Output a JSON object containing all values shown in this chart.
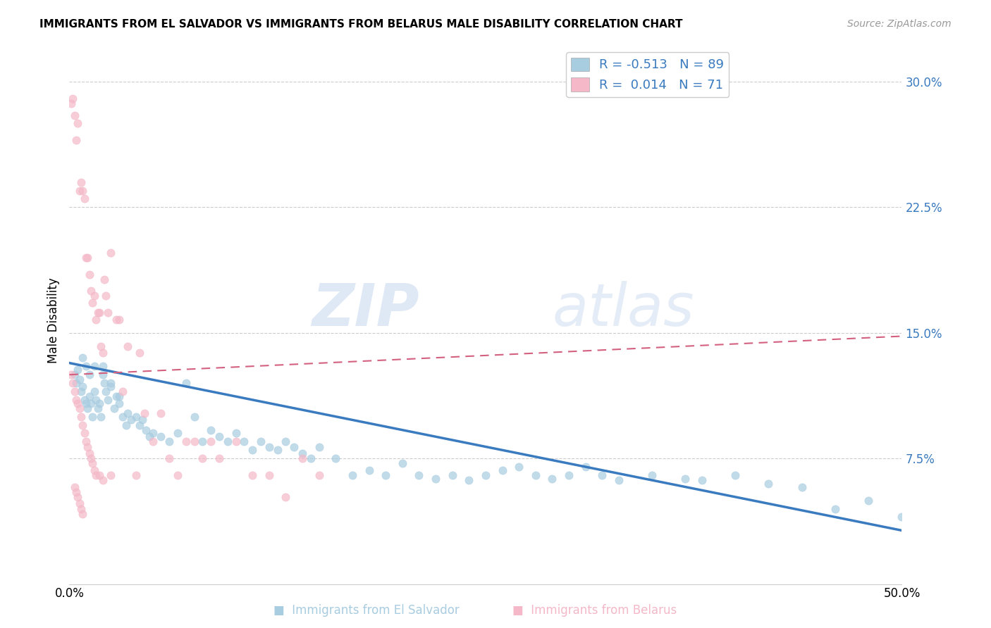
{
  "title": "IMMIGRANTS FROM EL SALVADOR VS IMMIGRANTS FROM BELARUS MALE DISABILITY CORRELATION CHART",
  "source": "Source: ZipAtlas.com",
  "xlabel_label": "Immigrants from El Salvador",
  "xlabel_label2": "Immigrants from Belarus",
  "ylabel": "Male Disability",
  "y_ticks": [
    0.075,
    0.15,
    0.225,
    0.3
  ],
  "xlim": [
    0.0,
    0.5
  ],
  "ylim": [
    0.0,
    0.315
  ],
  "blue_color": "#a8cce0",
  "pink_color": "#f4b8c8",
  "blue_line_color": "#3a7abf",
  "pink_line_color": "#d46080",
  "R_blue": -0.513,
  "N_blue": 89,
  "R_pink": 0.014,
  "N_pink": 71,
  "watermark_zip": "ZIP",
  "watermark_atlas": "atlas",
  "blue_scatter_x": [
    0.003,
    0.004,
    0.005,
    0.006,
    0.007,
    0.008,
    0.009,
    0.01,
    0.011,
    0.012,
    0.013,
    0.014,
    0.015,
    0.016,
    0.017,
    0.018,
    0.019,
    0.02,
    0.021,
    0.022,
    0.023,
    0.025,
    0.027,
    0.028,
    0.03,
    0.032,
    0.034,
    0.035,
    0.037,
    0.04,
    0.042,
    0.044,
    0.046,
    0.048,
    0.05,
    0.055,
    0.06,
    0.065,
    0.07,
    0.075,
    0.08,
    0.085,
    0.09,
    0.095,
    0.1,
    0.105,
    0.11,
    0.115,
    0.12,
    0.125,
    0.13,
    0.135,
    0.14,
    0.145,
    0.15,
    0.16,
    0.17,
    0.18,
    0.19,
    0.2,
    0.21,
    0.22,
    0.23,
    0.24,
    0.25,
    0.26,
    0.27,
    0.28,
    0.29,
    0.3,
    0.31,
    0.32,
    0.33,
    0.35,
    0.37,
    0.38,
    0.4,
    0.42,
    0.44,
    0.46,
    0.48,
    0.5,
    0.008,
    0.01,
    0.012,
    0.015,
    0.02,
    0.025,
    0.03
  ],
  "blue_scatter_y": [
    0.125,
    0.12,
    0.128,
    0.122,
    0.115,
    0.118,
    0.11,
    0.108,
    0.105,
    0.112,
    0.108,
    0.1,
    0.115,
    0.11,
    0.105,
    0.108,
    0.1,
    0.13,
    0.12,
    0.115,
    0.11,
    0.118,
    0.105,
    0.112,
    0.108,
    0.1,
    0.095,
    0.102,
    0.098,
    0.1,
    0.095,
    0.098,
    0.092,
    0.088,
    0.09,
    0.088,
    0.085,
    0.09,
    0.12,
    0.1,
    0.085,
    0.092,
    0.088,
    0.085,
    0.09,
    0.085,
    0.08,
    0.085,
    0.082,
    0.08,
    0.085,
    0.082,
    0.078,
    0.075,
    0.082,
    0.075,
    0.065,
    0.068,
    0.065,
    0.072,
    0.065,
    0.063,
    0.065,
    0.062,
    0.065,
    0.068,
    0.07,
    0.065,
    0.063,
    0.065,
    0.07,
    0.065,
    0.062,
    0.065,
    0.063,
    0.062,
    0.065,
    0.06,
    0.058,
    0.045,
    0.05,
    0.04,
    0.135,
    0.13,
    0.125,
    0.13,
    0.125,
    0.12,
    0.112
  ],
  "pink_scatter_x": [
    0.001,
    0.001,
    0.002,
    0.002,
    0.003,
    0.003,
    0.004,
    0.004,
    0.005,
    0.005,
    0.006,
    0.006,
    0.007,
    0.007,
    0.008,
    0.008,
    0.009,
    0.009,
    0.01,
    0.01,
    0.011,
    0.011,
    0.012,
    0.012,
    0.013,
    0.013,
    0.014,
    0.014,
    0.015,
    0.015,
    0.016,
    0.016,
    0.017,
    0.018,
    0.018,
    0.019,
    0.02,
    0.02,
    0.021,
    0.022,
    0.023,
    0.025,
    0.025,
    0.028,
    0.03,
    0.032,
    0.035,
    0.04,
    0.042,
    0.045,
    0.05,
    0.055,
    0.06,
    0.065,
    0.07,
    0.075,
    0.08,
    0.085,
    0.09,
    0.1,
    0.11,
    0.12,
    0.13,
    0.14,
    0.15,
    0.003,
    0.004,
    0.005,
    0.006,
    0.007,
    0.008
  ],
  "pink_scatter_y": [
    0.287,
    0.125,
    0.29,
    0.12,
    0.28,
    0.115,
    0.265,
    0.11,
    0.275,
    0.108,
    0.235,
    0.105,
    0.24,
    0.1,
    0.235,
    0.095,
    0.23,
    0.09,
    0.195,
    0.085,
    0.195,
    0.082,
    0.185,
    0.078,
    0.175,
    0.075,
    0.168,
    0.072,
    0.172,
    0.068,
    0.158,
    0.065,
    0.162,
    0.162,
    0.065,
    0.142,
    0.138,
    0.062,
    0.182,
    0.172,
    0.162,
    0.198,
    0.065,
    0.158,
    0.158,
    0.115,
    0.142,
    0.065,
    0.138,
    0.102,
    0.085,
    0.102,
    0.075,
    0.065,
    0.085,
    0.085,
    0.075,
    0.085,
    0.075,
    0.085,
    0.065,
    0.065,
    0.052,
    0.075,
    0.065,
    0.058,
    0.055,
    0.052,
    0.048,
    0.045,
    0.042
  ],
  "blue_trend_x": [
    0.0,
    0.5
  ],
  "blue_trend_y": [
    0.132,
    0.032
  ],
  "pink_trend_x": [
    0.0,
    0.5
  ],
  "pink_trend_y": [
    0.125,
    0.148
  ]
}
